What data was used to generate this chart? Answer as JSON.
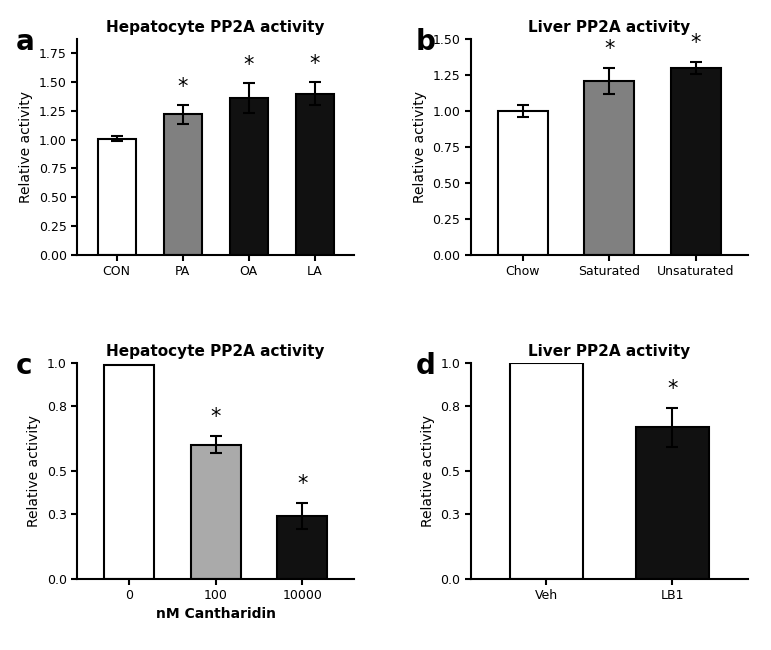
{
  "panel_a": {
    "title": "Hepatocyte PP2A activity",
    "categories": [
      "CON",
      "PA",
      "OA",
      "LA"
    ],
    "values": [
      1.01,
      1.22,
      1.36,
      1.4
    ],
    "errors": [
      0.02,
      0.08,
      0.13,
      0.1
    ],
    "colors": [
      "#ffffff",
      "#808080",
      "#111111",
      "#111111"
    ],
    "sig": [
      false,
      true,
      true,
      true
    ],
    "ylim": [
      0,
      1.875
    ],
    "yticks": [
      0.0,
      0.25,
      0.5,
      0.75,
      1.0,
      1.25,
      1.5,
      1.75
    ],
    "ytick_labels": [
      "0.00",
      "0.25",
      "0.50",
      "0.75",
      "1.00",
      "1.25",
      "1.50",
      "1.75"
    ],
    "ylabel": "Relative activity",
    "panel_label": "a"
  },
  "panel_b": {
    "title": "Liver PP2A activity",
    "categories": [
      "Chow",
      "Saturated",
      "Unsaturated"
    ],
    "values": [
      1.0,
      1.21,
      1.3
    ],
    "errors": [
      0.04,
      0.09,
      0.04
    ],
    "colors": [
      "#ffffff",
      "#808080",
      "#111111"
    ],
    "sig": [
      false,
      true,
      true
    ],
    "ylim": [
      0,
      1.5
    ],
    "yticks": [
      0.0,
      0.25,
      0.5,
      0.75,
      1.0,
      1.25,
      1.5
    ],
    "ytick_labels": [
      "0.00",
      "0.25",
      "0.50",
      "0.75",
      "1.00",
      "1.25",
      "1.50"
    ],
    "ylabel": "Relative activity",
    "panel_label": "b"
  },
  "panel_c": {
    "title": "Hepatocyte PP2A activity",
    "categories": [
      "0",
      "100",
      "10000"
    ],
    "values": [
      0.99,
      0.62,
      0.29
    ],
    "errors": [
      0.0,
      0.04,
      0.06
    ],
    "colors": [
      "#ffffff",
      "#aaaaaa",
      "#111111"
    ],
    "sig": [
      false,
      true,
      true
    ],
    "ylim": [
      0,
      1.0
    ],
    "yticks": [
      0.0,
      0.3,
      0.5,
      0.8,
      1.0
    ],
    "ytick_labels": [
      "0.0",
      "0.3",
      "0.5",
      "0.8",
      "1.0"
    ],
    "ylabel": "Relative activity",
    "xlabel": "nM Cantharidin",
    "panel_label": "c"
  },
  "panel_d": {
    "title": "Liver PP2A activity",
    "categories": [
      "Veh",
      "LB1"
    ],
    "values": [
      1.0,
      0.7
    ],
    "errors": [
      0.0,
      0.09
    ],
    "colors": [
      "#ffffff",
      "#111111"
    ],
    "sig": [
      false,
      true
    ],
    "ylim": [
      0,
      1.0
    ],
    "yticks": [
      0.0,
      0.3,
      0.5,
      0.8,
      1.0
    ],
    "ytick_labels": [
      "0.0",
      "0.3",
      "0.5",
      "0.8",
      "1.0"
    ],
    "ylabel": "Relative activity",
    "panel_label": "d"
  },
  "bar_width": 0.58,
  "edgecolor": "#000000",
  "linewidth": 1.5,
  "capsize": 4,
  "title_fontsize": 11,
  "label_fontsize": 10,
  "tick_fontsize": 9,
  "panel_label_fontsize": 20,
  "star_fontsize": 15,
  "background_color": "#ffffff"
}
